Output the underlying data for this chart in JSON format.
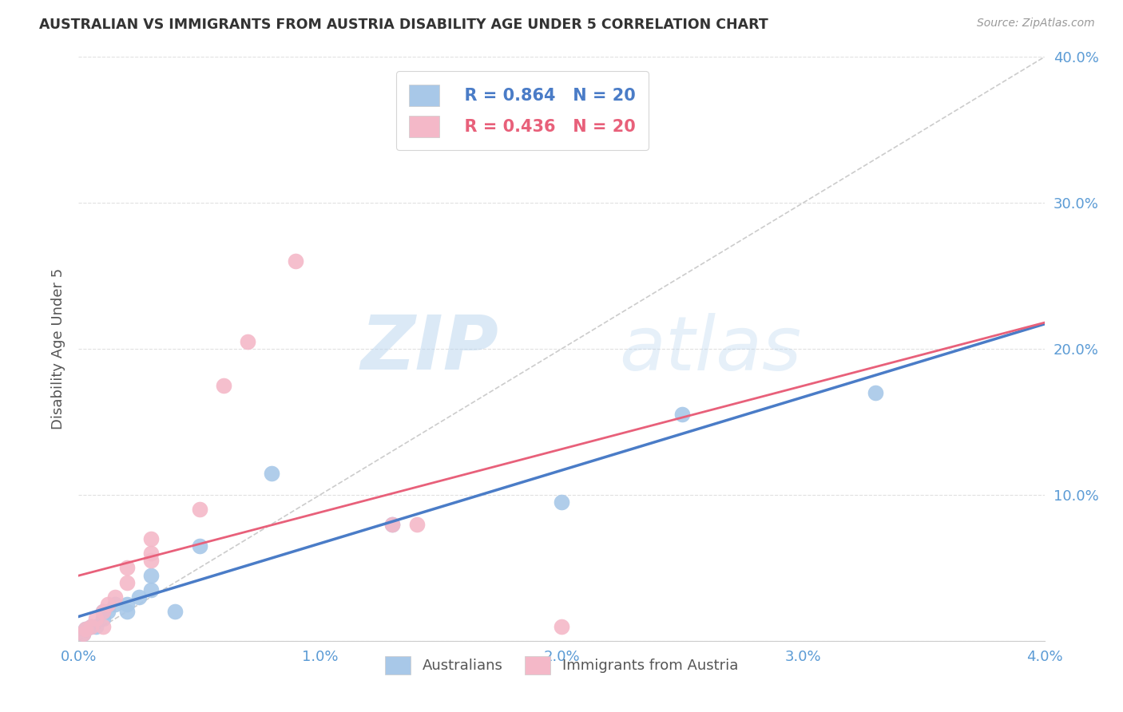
{
  "title": "AUSTRALIAN VS IMMIGRANTS FROM AUSTRIA DISABILITY AGE UNDER 5 CORRELATION CHART",
  "source": "Source: ZipAtlas.com",
  "ylabel": "Disability Age Under 5",
  "xlim": [
    0.0,
    0.04
  ],
  "ylim": [
    0.0,
    0.4
  ],
  "xticks": [
    0.0,
    0.01,
    0.02,
    0.03,
    0.04
  ],
  "yticks": [
    0.0,
    0.1,
    0.2,
    0.3,
    0.4
  ],
  "xtick_labels": [
    "0.0%",
    "1.0%",
    "2.0%",
    "3.0%",
    "4.0%"
  ],
  "ytick_labels": [
    "",
    "10.0%",
    "20.0%",
    "30.0%",
    "40.0%"
  ],
  "diagonal_color": "#cccccc",
  "blue_R": "R = 0.864",
  "blue_N": "N = 20",
  "pink_R": "R = 0.436",
  "pink_N": "N = 20",
  "blue_color": "#a8c8e8",
  "pink_color": "#f4b8c8",
  "blue_line_color": "#4a7cc7",
  "pink_line_color": "#e8607a",
  "legend_label_blue": "Australians",
  "legend_label_pink": "Immigrants from Austria",
  "australians_x": [
    0.0002,
    0.0003,
    0.0005,
    0.0007,
    0.001,
    0.001,
    0.0012,
    0.0015,
    0.002,
    0.002,
    0.0025,
    0.003,
    0.003,
    0.004,
    0.005,
    0.008,
    0.013,
    0.02,
    0.025,
    0.033
  ],
  "australians_y": [
    0.005,
    0.008,
    0.01,
    0.01,
    0.015,
    0.02,
    0.02,
    0.025,
    0.02,
    0.025,
    0.03,
    0.035,
    0.045,
    0.02,
    0.065,
    0.115,
    0.08,
    0.095,
    0.155,
    0.17
  ],
  "austria_x": [
    0.0002,
    0.0003,
    0.0005,
    0.0007,
    0.001,
    0.001,
    0.0012,
    0.0015,
    0.002,
    0.002,
    0.003,
    0.003,
    0.003,
    0.005,
    0.006,
    0.007,
    0.009,
    0.013,
    0.014,
    0.02
  ],
  "austria_y": [
    0.005,
    0.008,
    0.01,
    0.015,
    0.01,
    0.02,
    0.025,
    0.03,
    0.04,
    0.05,
    0.055,
    0.06,
    0.07,
    0.09,
    0.175,
    0.205,
    0.26,
    0.08,
    0.08,
    0.01
  ],
  "watermark_zip": "ZIP",
  "watermark_atlas": "atlas",
  "background_color": "#ffffff",
  "grid_color": "#e0e0e0"
}
